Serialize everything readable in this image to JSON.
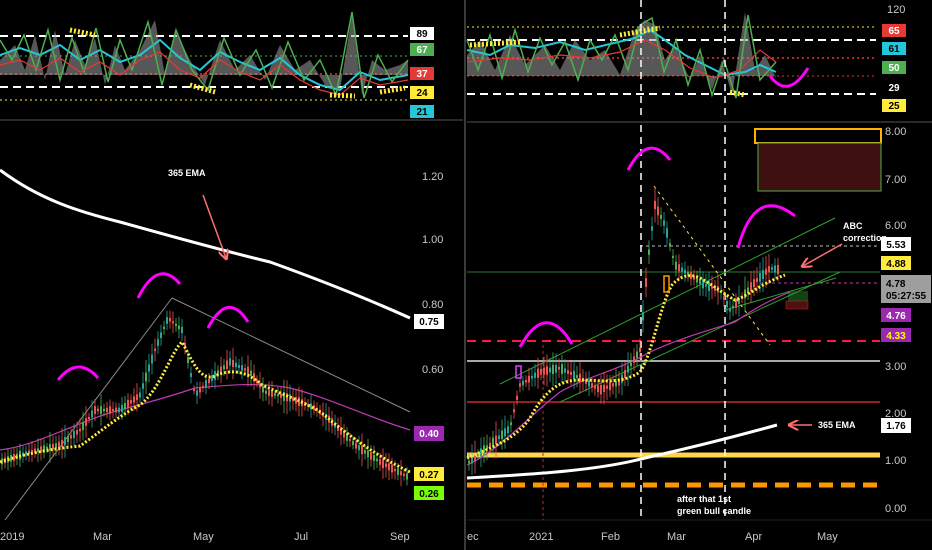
{
  "colors": {
    "background": "#000000",
    "candle_up": "#26a69a",
    "candle_up_bright": "#4caf50",
    "candle_down": "#ef5350",
    "ema365": "#ffffff",
    "ma_yellow": "#ffeb3b",
    "ma_magenta": "#c239b3",
    "arc_magenta": "#ff00ff",
    "trendline": "#2e9e2e",
    "arrow_pink": "#ff6f6f",
    "red_level": "#ff1744",
    "orange_level": "#ff9800",
    "gold_level": "#ffd54f"
  },
  "left_chart": {
    "oscillator": {
      "badges": [
        {
          "label": "89",
          "bg": "#ffffff",
          "fg": "#000000"
        },
        {
          "label": "67",
          "bg": "#4caf50",
          "fg": "#ffffff"
        },
        {
          "label": "37",
          "bg": "#e53935",
          "fg": "#ffffff"
        },
        {
          "label": "24",
          "bg": "#ffeb3b",
          "fg": "#000000"
        },
        {
          "label": "21",
          "bg": "#26c6da",
          "fg": "#000000"
        }
      ]
    },
    "price_axis": {
      "ticks": [
        "1.20",
        "1.00",
        "0.80",
        "0.60"
      ]
    },
    "badges": [
      {
        "label": "0.75",
        "bg": "#ffffff",
        "fg": "#000000"
      },
      {
        "label": "0.40",
        "bg": "#9c27b0",
        "fg": "#ffffff"
      },
      {
        "label": "0.27",
        "bg": "#ffeb3b",
        "fg": "#000000"
      },
      {
        "label": "0.26",
        "bg": "#76ff03",
        "fg": "#000000"
      }
    ],
    "time_axis": [
      "2019",
      "Mar",
      "May",
      "Jul",
      "Sep"
    ],
    "annotations": {
      "ema_label": "365 EMA"
    }
  },
  "right_chart": {
    "oscillator": {
      "axis_top": "120",
      "badges": [
        {
          "label": "65",
          "bg": "#e53935",
          "fg": "#ffffff"
        },
        {
          "label": "61",
          "bg": "#26c6da",
          "fg": "#000000"
        },
        {
          "label": "50",
          "bg": "#4caf50",
          "fg": "#ffffff"
        },
        {
          "label": "29",
          "bg": "#000000",
          "fg": "#ffffff"
        },
        {
          "label": "25",
          "bg": "#ffeb3b",
          "fg": "#000000"
        }
      ]
    },
    "price_axis": {
      "ticks": [
        "8.00",
        "7.00",
        "6.00",
        "3.00",
        "2.00",
        "1.00",
        "0.00"
      ]
    },
    "badges": [
      {
        "label": "5.53",
        "bg": "#ffffff",
        "fg": "#000000"
      },
      {
        "label": "4.88",
        "bg": "#ffeb3b",
        "fg": "#000000"
      },
      {
        "label": "4.78",
        "bg": "#9e9e9e",
        "fg": "#000000"
      },
      {
        "label": "05:27:55",
        "bg": "#9e9e9e",
        "fg": "#000000"
      },
      {
        "label": "4.76",
        "bg": "#9c27b0",
        "fg": "#ffffff"
      },
      {
        "label": "4.33",
        "bg": "#9c27b0",
        "fg": "#ffff00"
      },
      {
        "label": "1.76",
        "bg": "#ffffff",
        "fg": "#000000"
      }
    ],
    "time_axis": [
      "ec",
      "2021",
      "Feb",
      "Mar",
      "Apr",
      "May"
    ],
    "annotations": {
      "abc_line1": "ABC",
      "abc_line2": "correction",
      "ema_label": "365 EMA",
      "bull_line1": "after that 1st",
      "bull_line2": "green bull candle"
    }
  },
  "chart_data": [
    {
      "type": "candlestick",
      "title": "",
      "time_labels": [
        "2019",
        "Mar",
        "May",
        "Jul",
        "Sep"
      ],
      "y_ticks": [
        0.6,
        0.8,
        1.0,
        1.2
      ],
      "series": [
        {
          "name": "365 EMA",
          "values": [
            1.24,
            1.12,
            1.02,
            0.95,
            0.89,
            0.84,
            0.79,
            0.75
          ]
        },
        {
          "values": [
            0.26,
            0.45,
            0.72,
            0.6,
            0.46,
            0.35,
            0.27
          ]
        },
        {
          "values": [
            0.4,
            0.48,
            0.55,
            0.55,
            0.48,
            0.4
          ]
        }
      ],
      "levels": [
        0.75,
        0.4,
        0.27,
        0.26
      ],
      "oscillator_levels": [
        89,
        67,
        37,
        24,
        21
      ]
    },
    {
      "type": "candlestick",
      "title": "",
      "time_labels": [
        "ec",
        "2021",
        "Feb",
        "Mar",
        "Apr",
        "May"
      ],
      "y_ticks": [
        0,
        1,
        2,
        3,
        6,
        7,
        8
      ],
      "series": [
        {
          "name": "365 EMA",
          "values": [
            0.9,
            1.05,
            1.3,
            1.76
          ]
        },
        {
          "values": [
            1.1,
            2.8,
            4.9,
            4.3,
            4.78
          ]
        },
        {
          "values": [
            1.2,
            2.3,
            3.5,
            4.0,
            4.76
          ]
        }
      ],
      "levels": [
        5.53,
        4.88,
        4.78,
        4.76,
        4.33,
        3.0,
        2.2,
        1.1,
        0.5
      ],
      "oscillator_axis_max": 120,
      "oscillator_levels": [
        65,
        61,
        50,
        29,
        25
      ]
    }
  ]
}
